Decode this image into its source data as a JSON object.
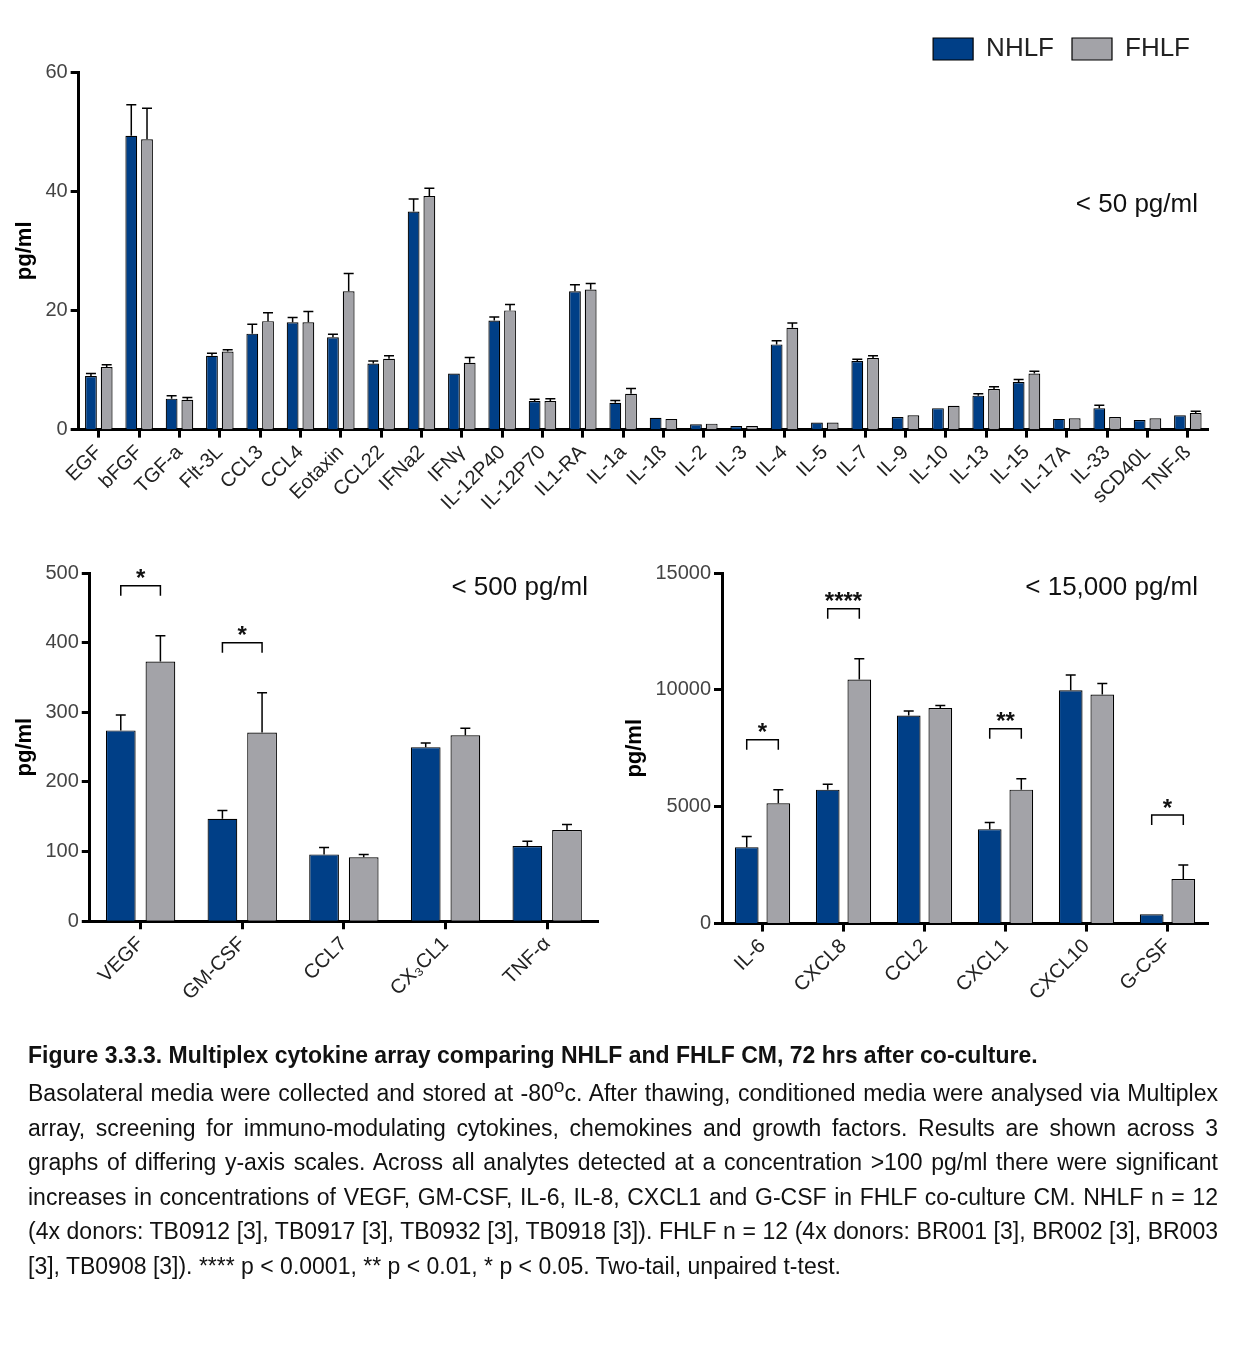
{
  "chart_data": [
    {
      "type": "bar",
      "ylabel": "pg/ml",
      "categories": [
        "EGF",
        "bFGF",
        "TGF-a",
        "Flt-3L",
        "CCL3",
        "CCL4",
        "Eotaxin",
        "CCL22",
        "IFNa2",
        "IFNγ",
        "IL-12P40",
        "IL-12P70",
        "IL1-RA",
        "IL-1a",
        "IL-1ß",
        "IL-2",
        "IL-3",
        "IL-4",
        "IL-5",
        "IL-7",
        "IL-9",
        "IL-10",
        "IL-13",
        "IL-15",
        "IL-17A",
        "IL-33",
        "sCD40L",
        "TNF-ß"
      ],
      "series": [
        {
          "name": "NHLF",
          "color": "#003f87",
          "values": [
            9,
            49.3,
            5.2,
            12.4,
            16.1,
            18,
            15.5,
            11.1,
            36.6,
            9.4,
            18.3,
            4.8,
            23.2,
            4.5,
            2,
            0.9,
            0.6,
            14.3,
            1.2,
            11.5,
            2.1,
            3.6,
            5.7,
            8,
            1.8,
            3.6,
            1.6,
            2.4
          ],
          "errors": [
            [
              9,
              9.4
            ],
            [
              49.3,
              54.5
            ],
            [
              5.2,
              5.7
            ],
            [
              12.4,
              12.8
            ],
            [
              16.1,
              17.7
            ],
            [
              18,
              18.8
            ],
            [
              15.5,
              16
            ],
            [
              11.1,
              11.5
            ],
            [
              36.6,
              38.7
            ],
            null,
            [
              18.3,
              18.9
            ],
            [
              4.8,
              5.1
            ],
            [
              23.2,
              24.3
            ],
            [
              4.5,
              4.9
            ],
            null,
            null,
            null,
            [
              14.3,
              14.9
            ],
            null,
            [
              11.5,
              11.8
            ],
            null,
            null,
            [
              5.7,
              6
            ],
            [
              8,
              8.4
            ],
            null,
            [
              3.6,
              4.1
            ],
            null,
            null
          ]
        },
        {
          "name": "FHLF",
          "color": "#a3a3a8",
          "values": [
            10.5,
            48.7,
            5,
            13.1,
            18.2,
            18,
            23.2,
            11.9,
            39.2,
            11.2,
            20,
            4.8,
            23.5,
            6,
            1.8,
            1,
            0.6,
            17.1,
            1.2,
            12,
            2.4,
            4,
            6.8,
            9.4,
            1.9,
            2.1,
            1.9,
            2.8
          ],
          "errors": [
            [
              10.5,
              10.9
            ],
            [
              48.7,
              53.9
            ],
            [
              5,
              5.4
            ],
            [
              13.1,
              13.4
            ],
            [
              18.2,
              19.6
            ],
            [
              18,
              19.8
            ],
            [
              23.2,
              26.2
            ],
            [
              11.9,
              12.4
            ],
            [
              39.2,
              40.5
            ],
            [
              11.2,
              12.1
            ],
            [
              20,
              21
            ],
            [
              4.8,
              5.2
            ],
            [
              23.5,
              24.5
            ],
            [
              6,
              6.9
            ],
            null,
            null,
            null,
            [
              17.1,
              17.9
            ],
            null,
            [
              12,
              12.4
            ],
            null,
            null,
            [
              6.8,
              7.2
            ],
            [
              9.4,
              9.8
            ],
            null,
            null,
            null,
            [
              2.8,
              3.1
            ]
          ]
        }
      ],
      "ylim": [
        0,
        60
      ],
      "yticks": [
        0,
        20,
        40,
        60
      ],
      "grid": false,
      "legend": "top right",
      "annotations": [
        "< 50 pg/ml"
      ]
    },
    {
      "type": "bar",
      "ylabel": "pg/ml",
      "categories": [
        "VEGF",
        "GM-CSF",
        "CCL7",
        "CX₃CL1",
        "TNF-α"
      ],
      "series": [
        {
          "color": "#003f87",
          "values": [
            274,
            147,
            96,
            250,
            108
          ],
          "errors": [
            [
              274,
              296
            ],
            [
              147,
              159
            ],
            [
              96,
              106
            ],
            [
              250,
              256
            ],
            [
              108,
              115
            ]
          ]
        },
        {
          "color": "#a3a3a8",
          "values": [
            373,
            271,
            92,
            267,
            131
          ],
          "errors": [
            [
              373,
              410
            ],
            [
              271,
              328
            ],
            [
              92,
              96
            ],
            [
              267,
              277
            ],
            [
              131,
              139
            ]
          ]
        }
      ],
      "ylim": [
        0,
        500
      ],
      "yticks": [
        0,
        100,
        200,
        300,
        400,
        500
      ],
      "grid": false,
      "legend": false,
      "annotations": [
        "< 500 pg/ml",
        "*",
        "*"
      ]
    },
    {
      "type": "bar",
      "ylabel": "pg/ml",
      "categories": [
        "IL-6",
        "CXCL8",
        "CCL2",
        "CXCL1",
        "CXCL10",
        "G-CSF"
      ],
      "series": [
        {
          "color": "#003f87",
          "values": [
            3270,
            5730,
            8900,
            4040,
            9980,
            400
          ],
          "errors": [
            [
              3270,
              3730
            ],
            [
              5730,
              5960
            ],
            [
              8900,
              9100
            ],
            [
              4040,
              4330
            ],
            [
              9980,
              10640
            ],
            null
          ]
        },
        {
          "color": "#a3a3a8",
          "values": [
            5150,
            10440,
            9220,
            5730,
            9800,
            1910
          ],
          "errors": [
            [
              5150,
              5730
            ],
            [
              10440,
              11330
            ],
            [
              9220,
              9330
            ],
            [
              5730,
              6200
            ],
            [
              9800,
              10270
            ],
            [
              1910,
              2510
            ]
          ]
        }
      ],
      "ylim": [
        0,
        15000
      ],
      "yticks": [
        0,
        5000,
        10000,
        15000
      ],
      "grid": false,
      "legend": false,
      "annotations": [
        "< 15,000 pg/ml",
        "*",
        "****",
        "**",
        "*",
        "Figure 3.3.3. Multiplex cytokine array comparing NHLF and FHLF CM, 72 hrs after co-culture.",
        "Basolateral media were collected and stored at -80$^{o}$c. After thawing, conditioned media were analysed via Multiplex array, screening for immuno-modulating cytokines, chemokines and growth factors. Results are shown across 3 graphs of differing y-axis scales. Across all analytes detected at a concentration >100 pg/ml there were significant increases in concentrations of VEGF, GM-CSF, IL-6, IL-8, CXCL1 and G-CSF in FHLF co-culture CM. NHLF n = 12 (4x donors: TB0912 [3], TB0917 [3], TB0932 [3], TB0918 [3]). FHLF n = 12 (4x donors: BR001 [3], BR002 [3], BR003 [3], TB0908 [3]). **** p < 0.0001, ** p < 0.01, * p < 0.05. Two-tail, unpaired t-test."
      ]
    }
  ]
}
